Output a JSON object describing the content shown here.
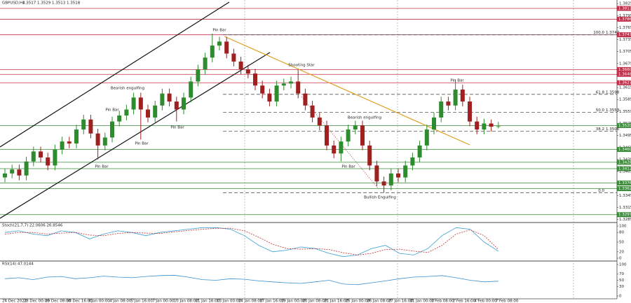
{
  "chart_data": [
    {
      "type": "candlestick",
      "title": "GBPUSD,H4",
      "subtitle": "1.3517 1.3529 1.3513 1.3518",
      "categories": [
        "24 Dec 2021",
        null,
        null,
        "28 Dec 00:00",
        null,
        null,
        "29 Dec 08:00",
        null,
        null,
        "30 Dec 16:00",
        null,
        null,
        "3 Jan 00:00",
        null,
        null,
        "4 Jan 08:00",
        null,
        null,
        "5 Jan 16:00",
        null,
        null,
        "7 Jan 00:00",
        null,
        null,
        "10 Jan 08:00",
        null,
        null,
        "11 Jan 16:00",
        null,
        null,
        "13 Jan 00:00",
        null,
        null,
        "14 Jan 08:00",
        null,
        null,
        "17 Jan 16:00",
        null,
        null,
        "19 Jan 00:00",
        null,
        null,
        "20 Jan 08:00",
        null,
        null,
        "21 Jan 16:00",
        null,
        null,
        "25 Jan 00:00",
        null,
        null,
        "26 Jan 08:00",
        null,
        null,
        "27 Jan 16:00",
        null,
        null,
        "31 Jan 00:00",
        null,
        null,
        "1 Feb 08:00",
        null,
        null,
        "2 Feb 16:00",
        null,
        null,
        "4 Feb 00:00",
        null,
        null,
        "7 Feb 08:00"
      ],
      "open": [
        1.339,
        1.34,
        1.341,
        1.3395,
        1.343,
        1.3455,
        1.344,
        1.342,
        1.346,
        1.348,
        1.3475,
        1.351,
        1.3535,
        1.35,
        1.347,
        1.349,
        1.353,
        1.3545,
        1.356,
        1.359,
        1.356,
        1.354,
        1.357,
        1.36,
        1.358,
        1.356,
        1.359,
        1.363,
        1.366,
        1.369,
        1.372,
        1.373,
        1.37,
        1.368,
        1.366,
        1.365,
        1.362,
        1.36,
        1.358,
        1.362,
        1.3625,
        1.363,
        1.36,
        1.357,
        1.354,
        1.352,
        1.347,
        1.345,
        1.348,
        1.351,
        1.352,
        1.347,
        1.342,
        1.338,
        1.337,
        1.34,
        1.339,
        1.342,
        1.344,
        1.347,
        1.351,
        1.354,
        1.358,
        1.357,
        1.361,
        1.358,
        1.353,
        1.351,
        1.3525,
        1.3517
      ],
      "high": [
        1.3412,
        1.3422,
        1.3422,
        1.3442,
        1.3467,
        1.3467,
        1.3452,
        1.3472,
        1.3492,
        1.3492,
        1.3522,
        1.3547,
        1.3547,
        1.3512,
        1.3502,
        1.3542,
        1.3557,
        1.3572,
        1.3602,
        1.3602,
        1.3572,
        1.3582,
        1.3612,
        1.3612,
        1.3592,
        1.3602,
        1.3642,
        1.3672,
        1.3702,
        1.375,
        1.3742,
        1.3742,
        1.3712,
        1.3692,
        1.3672,
        1.3662,
        1.3632,
        1.3612,
        1.3632,
        1.3637,
        1.3642,
        1.366,
        1.3612,
        1.3582,
        1.3552,
        1.3532,
        1.3482,
        1.3492,
        1.3522,
        1.3532,
        1.3532,
        1.3482,
        1.3432,
        1.3392,
        1.3412,
        1.3412,
        1.3432,
        1.3452,
        1.3482,
        1.3522,
        1.3552,
        1.3592,
        1.3592,
        1.3635,
        1.3622,
        1.3592,
        1.3542,
        1.3537,
        1.3535,
        1.3529
      ],
      "low": [
        1.3378,
        1.3388,
        1.3383,
        1.3383,
        1.3418,
        1.3428,
        1.3408,
        1.3408,
        1.3448,
        1.3463,
        1.3463,
        1.3498,
        1.3488,
        1.3435,
        1.3458,
        1.3478,
        1.3518,
        1.3533,
        1.3548,
        1.3485,
        1.3528,
        1.3528,
        1.3558,
        1.3568,
        1.353,
        1.3548,
        1.3578,
        1.3618,
        1.3648,
        1.3678,
        1.3708,
        1.3688,
        1.3668,
        1.3648,
        1.3638,
        1.3608,
        1.3588,
        1.3568,
        1.3568,
        1.3608,
        1.3613,
        1.3588,
        1.3558,
        1.3528,
        1.3508,
        1.3458,
        1.3438,
        1.343,
        1.3468,
        1.3498,
        1.3458,
        1.3408,
        1.3368,
        1.3352,
        1.3358,
        1.3378,
        1.3378,
        1.3408,
        1.3428,
        1.3458,
        1.3498,
        1.3528,
        1.3558,
        1.3558,
        1.3568,
        1.3518,
        1.3498,
        1.3498,
        1.3505,
        1.3513
      ],
      "close": [
        1.34,
        1.341,
        1.3395,
        1.343,
        1.3455,
        1.344,
        1.342,
        1.346,
        1.348,
        1.3475,
        1.351,
        1.3535,
        1.35,
        1.347,
        1.349,
        1.353,
        1.3545,
        1.356,
        1.359,
        1.356,
        1.354,
        1.357,
        1.36,
        1.358,
        1.356,
        1.359,
        1.363,
        1.366,
        1.369,
        1.372,
        1.373,
        1.37,
        1.368,
        1.366,
        1.365,
        1.362,
        1.36,
        1.358,
        1.362,
        1.3625,
        1.363,
        1.36,
        1.357,
        1.354,
        1.352,
        1.347,
        1.345,
        1.348,
        1.351,
        1.352,
        1.347,
        1.342,
        1.338,
        1.337,
        1.34,
        1.339,
        1.342,
        1.344,
        1.347,
        1.351,
        1.354,
        1.358,
        1.357,
        1.361,
        1.358,
        1.353,
        1.351,
        1.3525,
        1.3517,
        1.3518
      ],
      "up_color": "#2e8b2e",
      "down_color": "#a02020",
      "ylim": [
        1.3279,
        1.3834
      ],
      "yticks": [
        1.3825,
        1.3795,
        1.3765,
        1.3735,
        1.3705,
        1.3675,
        1.3645,
        1.3615,
        1.3585,
        1.3555,
        1.3525,
        1.3495,
        1.3465,
        1.3435,
        1.3405,
        1.3375,
        1.3345,
        1.3315,
        1.3285
      ],
      "levels": [
        {
          "value": 1.3813,
          "color": "#c0304a"
        },
        {
          "value": 1.3786,
          "color": "#c0304a"
        },
        {
          "value": 1.3747,
          "color": "#c0304a"
        },
        {
          "value": 1.366,
          "label": "1.3660",
          "color": "#c0304a"
        },
        {
          "value": 1.3648,
          "color": "#c0304a"
        },
        {
          "value": 1.3627,
          "color": "#c0304a"
        },
        {
          "value": 1.352,
          "label": "1.3520",
          "color": "#3a8a3a"
        },
        {
          "value": 1.346,
          "label": "1.3460",
          "color": "#3a8a3a"
        },
        {
          "value": 1.3428,
          "color": "#3a8a3a"
        },
        {
          "value": 1.3412,
          "color": "#3a8a3a"
        },
        {
          "value": 1.3376,
          "color": "#3a8a3a"
        },
        {
          "value": 1.3362,
          "color": "#3a8a3a"
        },
        {
          "value": 1.3297,
          "color": "#3a8a3a"
        }
      ],
      "fib": [
        {
          "level": "100.0",
          "price": 1.3747
        },
        {
          "level": "61.8",
          "price": 1.3598
        },
        {
          "level": "50.0",
          "price": 1.3553
        },
        {
          "level": "38.2",
          "price": 1.3506
        },
        {
          "level": "0.0",
          "price": 1.3352
        }
      ],
      "annotations": [
        "Pin Bar",
        "Shooting Star",
        "Bearish engulfing",
        "Pin Bar",
        "Pin Bar",
        "Pin Bar",
        "Pin Bar",
        "Bearish engulfing",
        "Pin Bar",
        "Bullish Engulfing",
        "Pin Bar"
      ]
    },
    {
      "type": "line",
      "title": "Stoch(21,7,7) 22.0606 26.8546",
      "ylim": [
        0,
        100
      ],
      "yticks": [
        100,
        80,
        50,
        20,
        0
      ],
      "series": [
        {
          "color": "#3aa0d8",
          "values": [
            80,
            85,
            75,
            70,
            85,
            80,
            60,
            75,
            85,
            80,
            70,
            80,
            85,
            90,
            95,
            95,
            90,
            70,
            40,
            20,
            25,
            35,
            30,
            15,
            5,
            10,
            30,
            40,
            15,
            10,
            30,
            70,
            95,
            90,
            50,
            22.0606
          ]
        },
        {
          "color": "#c03030",
          "dashed": true,
          "values": [
            75,
            80,
            80,
            75,
            78,
            80,
            72,
            70,
            77,
            80,
            78,
            77,
            82,
            86,
            90,
            93,
            93,
            85,
            65,
            43,
            30,
            28,
            30,
            27,
            17,
            10,
            15,
            27,
            28,
            22,
            18,
            40,
            75,
            88,
            70,
            26.8546
          ]
        }
      ]
    },
    {
      "type": "line",
      "title": "RSI(14) 47.0144",
      "ylim": [
        0,
        100
      ],
      "yticks": [
        100,
        70,
        50,
        30,
        0
      ],
      "series": [
        {
          "color": "#3a8fd0",
          "values": [
            55,
            58,
            52,
            60,
            62,
            55,
            58,
            63,
            60,
            58,
            62,
            65,
            66,
            60,
            52,
            50,
            55,
            53,
            48,
            45,
            42,
            40,
            45,
            50,
            38,
            36,
            42,
            48,
            55,
            60,
            62,
            65,
            58,
            50,
            45,
            47.0144
          ]
        }
      ]
    }
  ]
}
